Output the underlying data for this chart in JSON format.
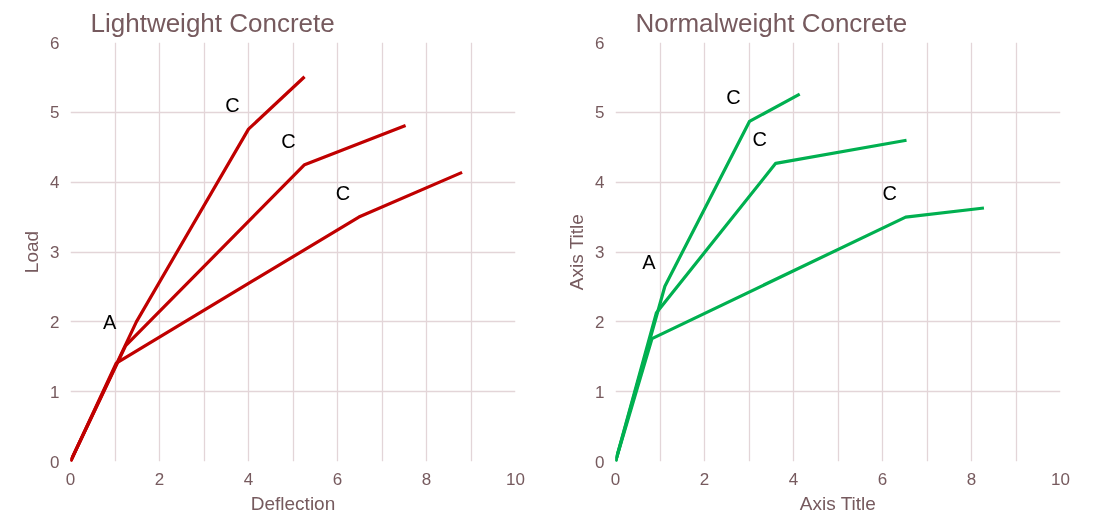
{
  "chart_data": [
    {
      "type": "line",
      "title": "Lightweight Concrete",
      "xlabel": "Deflection",
      "ylabel": "Load",
      "xlim": [
        0,
        10
      ],
      "ylim": [
        0,
        6
      ],
      "xticks": [
        0,
        2,
        4,
        6,
        8,
        10
      ],
      "yticks": [
        0,
        1,
        2,
        3,
        4,
        5,
        6
      ],
      "grid": true,
      "marker": "none",
      "line_style": "solid",
      "series": [
        {
          "color": "#c00000",
          "x": [
            0,
            1.48,
            4,
            5.26
          ],
          "values": [
            0,
            2.0,
            4.76,
            5.51
          ]
        },
        {
          "color": "#c00000",
          "x": [
            0,
            1.24,
            5.26,
            7.53
          ],
          "values": [
            0,
            1.66,
            4.25,
            4.81
          ]
        },
        {
          "color": "#c00000",
          "x": [
            0,
            1.03,
            6.48,
            8.8
          ],
          "values": [
            0,
            1.41,
            3.5,
            4.14
          ]
        }
      ],
      "annotations": [
        {
          "text": "C",
          "x": 4,
          "y": 4.76
        },
        {
          "text": "C",
          "x": 5.26,
          "y": 4.25
        },
        {
          "text": "C",
          "x": 6.48,
          "y": 3.5
        },
        {
          "text": "A",
          "x": 1.24,
          "y": 1.66
        }
      ]
    },
    {
      "type": "line",
      "title": "Normalweight Concrete",
      "xlabel": "Axis Title",
      "ylabel": "Axis Title",
      "xlim": [
        0,
        10
      ],
      "ylim": [
        0,
        6
      ],
      "xticks": [
        0,
        2,
        4,
        6,
        8,
        10
      ],
      "yticks": [
        0,
        1,
        2,
        3,
        4,
        5,
        6
      ],
      "grid": true,
      "marker": "none",
      "line_style": "solid",
      "series": [
        {
          "color": "#00b050",
          "x": [
            0,
            1.11,
            3.01,
            4.14
          ],
          "values": [
            0,
            2.51,
            4.87,
            5.26
          ]
        },
        {
          "color": "#00b050",
          "x": [
            0,
            0.92,
            3.6,
            6.54
          ],
          "values": [
            0,
            2.13,
            4.27,
            4.6
          ]
        },
        {
          "color": "#00b050",
          "x": [
            0,
            0.82,
            6.52,
            8.28
          ],
          "values": [
            0,
            1.76,
            3.5,
            3.63
          ]
        }
      ],
      "annotations": [
        {
          "text": "C",
          "x": 3.01,
          "y": 4.87
        },
        {
          "text": "C",
          "x": 3.6,
          "y": 4.27
        },
        {
          "text": "C",
          "x": 6.52,
          "y": 3.5
        },
        {
          "text": "A",
          "x": 1.11,
          "y": 2.51
        }
      ]
    }
  ]
}
